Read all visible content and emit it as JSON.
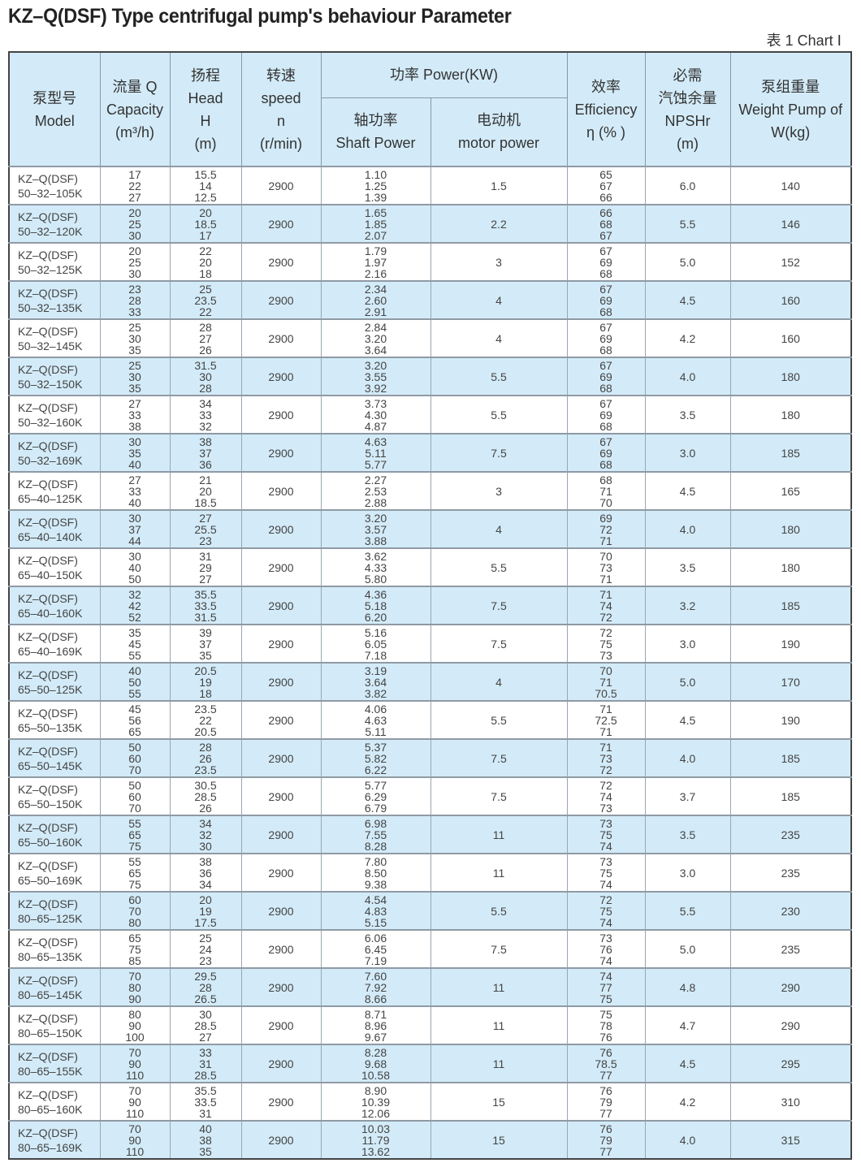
{
  "title": "KZ–Q(DSF) Type centrifugal pump's behaviour Parameter",
  "chart_label": "表 1  Chart Ⅰ",
  "header": {
    "model": [
      "泵型号",
      "Model"
    ],
    "capacity": [
      "流量 Q",
      "Capacity",
      "(m³/h)"
    ],
    "head": [
      "扬程",
      "Head",
      "H",
      "(m)"
    ],
    "speed": [
      "转速",
      "speed",
      "n",
      "(r/min)"
    ],
    "power": "功率 Power(KW)",
    "shaft": [
      "轴功率",
      "Shaft Power"
    ],
    "motor": [
      "电动机",
      "motor power"
    ],
    "efficiency": [
      "效率",
      "Efficiency",
      "η (% )"
    ],
    "npshr": [
      "必需",
      "汽蚀余量",
      "NPSHr",
      "(m)"
    ],
    "weight": [
      "泵组重量",
      "Weight Pump of",
      "W(kg)"
    ]
  },
  "rows": [
    {
      "model": [
        "KZ–Q(DSF)",
        "50–32–105K"
      ],
      "capacity": [
        "17",
        "22",
        "27"
      ],
      "head": [
        "15.5",
        "14",
        "12.5"
      ],
      "speed": "2900",
      "shaft": [
        "1.10",
        "1.25",
        "1.39"
      ],
      "motor": "1.5",
      "efficiency": [
        "65",
        "67",
        "66"
      ],
      "npshr": "6.0",
      "weight": "140"
    },
    {
      "model": [
        "KZ–Q(DSF)",
        "50–32–120K"
      ],
      "capacity": [
        "20",
        "25",
        "30"
      ],
      "head": [
        "20",
        "18.5",
        "17"
      ],
      "speed": "2900",
      "shaft": [
        "1.65",
        "1.85",
        "2.07"
      ],
      "motor": "2.2",
      "efficiency": [
        "66",
        "68",
        "67"
      ],
      "npshr": "5.5",
      "weight": "146"
    },
    {
      "model": [
        "KZ–Q(DSF)",
        "50–32–125K"
      ],
      "capacity": [
        "20",
        "25",
        "30"
      ],
      "head": [
        "22",
        "20",
        "18"
      ],
      "speed": "2900",
      "shaft": [
        "1.79",
        "1.97",
        "2.16"
      ],
      "motor": "3",
      "efficiency": [
        "67",
        "69",
        "68"
      ],
      "npshr": "5.0",
      "weight": "152"
    },
    {
      "model": [
        "KZ–Q(DSF)",
        "50–32–135K"
      ],
      "capacity": [
        "23",
        "28",
        "33"
      ],
      "head": [
        "25",
        "23.5",
        "22"
      ],
      "speed": "2900",
      "shaft": [
        "2.34",
        "2.60",
        "2.91"
      ],
      "motor": "4",
      "efficiency": [
        "67",
        "69",
        "68"
      ],
      "npshr": "4.5",
      "weight": "160"
    },
    {
      "model": [
        "KZ–Q(DSF)",
        "50–32–145K"
      ],
      "capacity": [
        "25",
        "30",
        "35"
      ],
      "head": [
        "28",
        "27",
        "26"
      ],
      "speed": "2900",
      "shaft": [
        "2.84",
        "3.20",
        "3.64"
      ],
      "motor": "4",
      "efficiency": [
        "67",
        "69",
        "68"
      ],
      "npshr": "4.2",
      "weight": "160"
    },
    {
      "model": [
        "KZ–Q(DSF)",
        "50–32–150K"
      ],
      "capacity": [
        "25",
        "30",
        "35"
      ],
      "head": [
        "31.5",
        "30",
        "28"
      ],
      "speed": "2900",
      "shaft": [
        "3.20",
        "3.55",
        "3.92"
      ],
      "motor": "5.5",
      "efficiency": [
        "67",
        "69",
        "68"
      ],
      "npshr": "4.0",
      "weight": "180"
    },
    {
      "model": [
        "KZ–Q(DSF)",
        "50–32–160K"
      ],
      "capacity": [
        "27",
        "33",
        "38"
      ],
      "head": [
        "34",
        "33",
        "32"
      ],
      "speed": "2900",
      "shaft": [
        "3.73",
        "4.30",
        "4.87"
      ],
      "motor": "5.5",
      "efficiency": [
        "67",
        "69",
        "68"
      ],
      "npshr": "3.5",
      "weight": "180"
    },
    {
      "model": [
        "KZ–Q(DSF)",
        "50–32–169K"
      ],
      "capacity": [
        "30",
        "35",
        "40"
      ],
      "head": [
        "38",
        "37",
        "36"
      ],
      "speed": "2900",
      "shaft": [
        "4.63",
        "5.11",
        "5.77"
      ],
      "motor": "7.5",
      "efficiency": [
        "67",
        "69",
        "68"
      ],
      "npshr": "3.0",
      "weight": "185"
    },
    {
      "model": [
        "KZ–Q(DSF)",
        "65–40–125K"
      ],
      "capacity": [
        "27",
        "33",
        "40"
      ],
      "head": [
        "21",
        "20",
        "18.5"
      ],
      "speed": "2900",
      "shaft": [
        "2.27",
        "2.53",
        "2.88"
      ],
      "motor": "3",
      "efficiency": [
        "68",
        "71",
        "70"
      ],
      "npshr": "4.5",
      "weight": "165"
    },
    {
      "model": [
        "KZ–Q(DSF)",
        "65–40–140K"
      ],
      "capacity": [
        "30",
        "37",
        "44"
      ],
      "head": [
        "27",
        "25.5",
        "23"
      ],
      "speed": "2900",
      "shaft": [
        "3.20",
        "3.57",
        "3.88"
      ],
      "motor": "4",
      "efficiency": [
        "69",
        "72",
        "71"
      ],
      "npshr": "4.0",
      "weight": "180"
    },
    {
      "model": [
        "KZ–Q(DSF)",
        "65–40–150K"
      ],
      "capacity": [
        "30",
        "40",
        "50"
      ],
      "head": [
        "31",
        "29",
        "27"
      ],
      "speed": "2900",
      "shaft": [
        "3.62",
        "4.33",
        "5.80"
      ],
      "motor": "5.5",
      "efficiency": [
        "70",
        "73",
        "71"
      ],
      "npshr": "3.5",
      "weight": "180"
    },
    {
      "model": [
        "KZ–Q(DSF)",
        "65–40–160K"
      ],
      "capacity": [
        "32",
        "42",
        "52"
      ],
      "head": [
        "35.5",
        "33.5",
        "31.5"
      ],
      "speed": "2900",
      "shaft": [
        "4.36",
        "5.18",
        "6.20"
      ],
      "motor": "7.5",
      "efficiency": [
        "71",
        "74",
        "72"
      ],
      "npshr": "3.2",
      "weight": "185"
    },
    {
      "model": [
        "KZ–Q(DSF)",
        "65–40–169K"
      ],
      "capacity": [
        "35",
        "45",
        "55"
      ],
      "head": [
        "39",
        "37",
        "35"
      ],
      "speed": "2900",
      "shaft": [
        "5.16",
        "6.05",
        "7.18"
      ],
      "motor": "7.5",
      "efficiency": [
        "72",
        "75",
        "73"
      ],
      "npshr": "3.0",
      "weight": "190"
    },
    {
      "model": [
        "KZ–Q(DSF)",
        "65–50–125K"
      ],
      "capacity": [
        "40",
        "50",
        "55"
      ],
      "head": [
        "20.5",
        "19",
        "18"
      ],
      "speed": "2900",
      "shaft": [
        "3.19",
        "3.64",
        "3.82"
      ],
      "motor": "4",
      "efficiency": [
        "70",
        "71",
        "70.5"
      ],
      "npshr": "5.0",
      "weight": "170"
    },
    {
      "model": [
        "KZ–Q(DSF)",
        "65–50–135K"
      ],
      "capacity": [
        "45",
        "56",
        "65"
      ],
      "head": [
        "23.5",
        "22",
        "20.5"
      ],
      "speed": "2900",
      "shaft": [
        "4.06",
        "4.63",
        "5.11"
      ],
      "motor": "5.5",
      "efficiency": [
        "71",
        "72.5",
        "71"
      ],
      "npshr": "4.5",
      "weight": "190"
    },
    {
      "model": [
        "KZ–Q(DSF)",
        "65–50–145K"
      ],
      "capacity": [
        "50",
        "60",
        "70"
      ],
      "head": [
        "28",
        "26",
        "23.5"
      ],
      "speed": "2900",
      "shaft": [
        "5.37",
        "5.82",
        "6.22"
      ],
      "motor": "7.5",
      "efficiency": [
        "71",
        "73",
        "72"
      ],
      "npshr": "4.0",
      "weight": "185"
    },
    {
      "model": [
        "KZ–Q(DSF)",
        "65–50–150K"
      ],
      "capacity": [
        "50",
        "60",
        "70"
      ],
      "head": [
        "30.5",
        "28.5",
        "26"
      ],
      "speed": "2900",
      "shaft": [
        "5.77",
        "6.29",
        "6.79"
      ],
      "motor": "7.5",
      "efficiency": [
        "72",
        "74",
        "73"
      ],
      "npshr": "3.7",
      "weight": "185"
    },
    {
      "model": [
        "KZ–Q(DSF)",
        "65–50–160K"
      ],
      "capacity": [
        "55",
        "65",
        "75"
      ],
      "head": [
        "34",
        "32",
        "30"
      ],
      "speed": "2900",
      "shaft": [
        "6.98",
        "7.55",
        "8.28"
      ],
      "motor": "11",
      "efficiency": [
        "73",
        "75",
        "74"
      ],
      "npshr": "3.5",
      "weight": "235"
    },
    {
      "model": [
        "KZ–Q(DSF)",
        "65–50–169K"
      ],
      "capacity": [
        "55",
        "65",
        "75"
      ],
      "head": [
        "38",
        "36",
        "34"
      ],
      "speed": "2900",
      "shaft": [
        "7.80",
        "8.50",
        "9.38"
      ],
      "motor": "11",
      "efficiency": [
        "73",
        "75",
        "74"
      ],
      "npshr": "3.0",
      "weight": "235"
    },
    {
      "model": [
        "KZ–Q(DSF)",
        "80–65–125K"
      ],
      "capacity": [
        "60",
        "70",
        "80"
      ],
      "head": [
        "20",
        "19",
        "17.5"
      ],
      "speed": "2900",
      "shaft": [
        "4.54",
        "4.83",
        "5.15"
      ],
      "motor": "5.5",
      "efficiency": [
        "72",
        "75",
        "74"
      ],
      "npshr": "5.5",
      "weight": "230"
    },
    {
      "model": [
        "KZ–Q(DSF)",
        "80–65–135K"
      ],
      "capacity": [
        "65",
        "75",
        "85"
      ],
      "head": [
        "25",
        "24",
        "23"
      ],
      "speed": "2900",
      "shaft": [
        "6.06",
        "6.45",
        "7.19"
      ],
      "motor": "7.5",
      "efficiency": [
        "73",
        "76",
        "74"
      ],
      "npshr": "5.0",
      "weight": "235"
    },
    {
      "model": [
        "KZ–Q(DSF)",
        "80–65–145K"
      ],
      "capacity": [
        "70",
        "80",
        "90"
      ],
      "head": [
        "29.5",
        "28",
        "26.5"
      ],
      "speed": "2900",
      "shaft": [
        "7.60",
        "7.92",
        "8.66"
      ],
      "motor": "11",
      "efficiency": [
        "74",
        "77",
        "75"
      ],
      "npshr": "4.8",
      "weight": "290"
    },
    {
      "model": [
        "KZ–Q(DSF)",
        "80–65–150K"
      ],
      "capacity": [
        "80",
        "90",
        "100"
      ],
      "head": [
        "30",
        "28.5",
        "27"
      ],
      "speed": "2900",
      "shaft": [
        "8.71",
        "8.96",
        "9.67"
      ],
      "motor": "11",
      "efficiency": [
        "75",
        "78",
        "76"
      ],
      "npshr": "4.7",
      "weight": "290"
    },
    {
      "model": [
        "KZ–Q(DSF)",
        "80–65–155K"
      ],
      "capacity": [
        "70",
        "90",
        "110"
      ],
      "head": [
        "33",
        "31",
        "28.5"
      ],
      "speed": "2900",
      "shaft": [
        "8.28",
        "9.68",
        "10.58"
      ],
      "motor": "11",
      "efficiency": [
        "76",
        "78.5",
        "77"
      ],
      "npshr": "4.5",
      "weight": "295"
    },
    {
      "model": [
        "KZ–Q(DSF)",
        "80–65–160K"
      ],
      "capacity": [
        "70",
        "90",
        "110"
      ],
      "head": [
        "35.5",
        "33.5",
        "31"
      ],
      "speed": "2900",
      "shaft": [
        "8.90",
        "10.39",
        "12.06"
      ],
      "motor": "15",
      "efficiency": [
        "76",
        "79",
        "77"
      ],
      "npshr": "4.2",
      "weight": "310"
    },
    {
      "model": [
        "KZ–Q(DSF)",
        "80–65–169K"
      ],
      "capacity": [
        "70",
        "90",
        "110"
      ],
      "head": [
        "40",
        "38",
        "35"
      ],
      "speed": "2900",
      "shaft": [
        "10.03",
        "11.79",
        "13.62"
      ],
      "motor": "15",
      "efficiency": [
        "76",
        "79",
        "77"
      ],
      "npshr": "4.0",
      "weight": "315"
    }
  ]
}
